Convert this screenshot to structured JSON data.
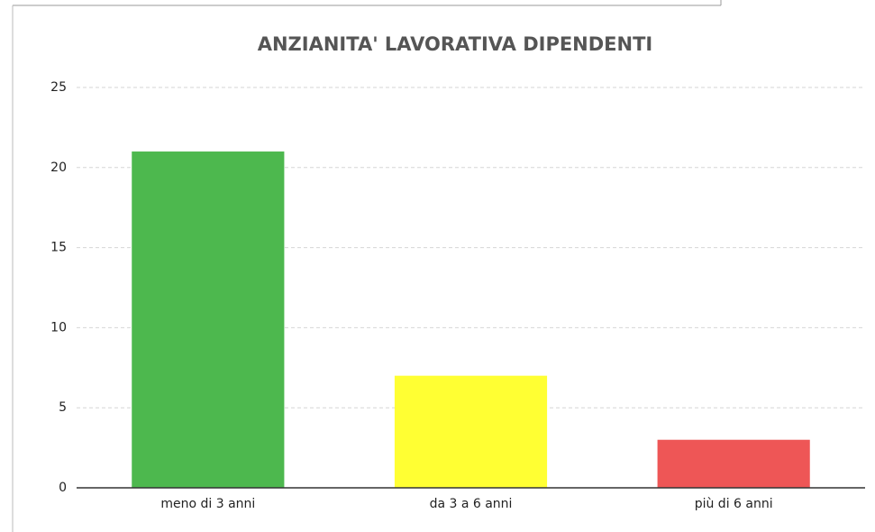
{
  "chart_data": {
    "type": "bar",
    "title": "ANZIANITA' LAVORATIVA DIPENDENTI",
    "categories": [
      "meno di 3 anni",
      "da 3 a 6 anni",
      "più di 6 anni"
    ],
    "values": [
      21,
      7,
      3
    ],
    "colors": [
      "#4db84e",
      "#ffff33",
      "#ee5656"
    ],
    "ylim": [
      0,
      25
    ],
    "yticks": [
      0,
      5,
      10,
      15,
      20,
      25
    ],
    "grid": true
  }
}
